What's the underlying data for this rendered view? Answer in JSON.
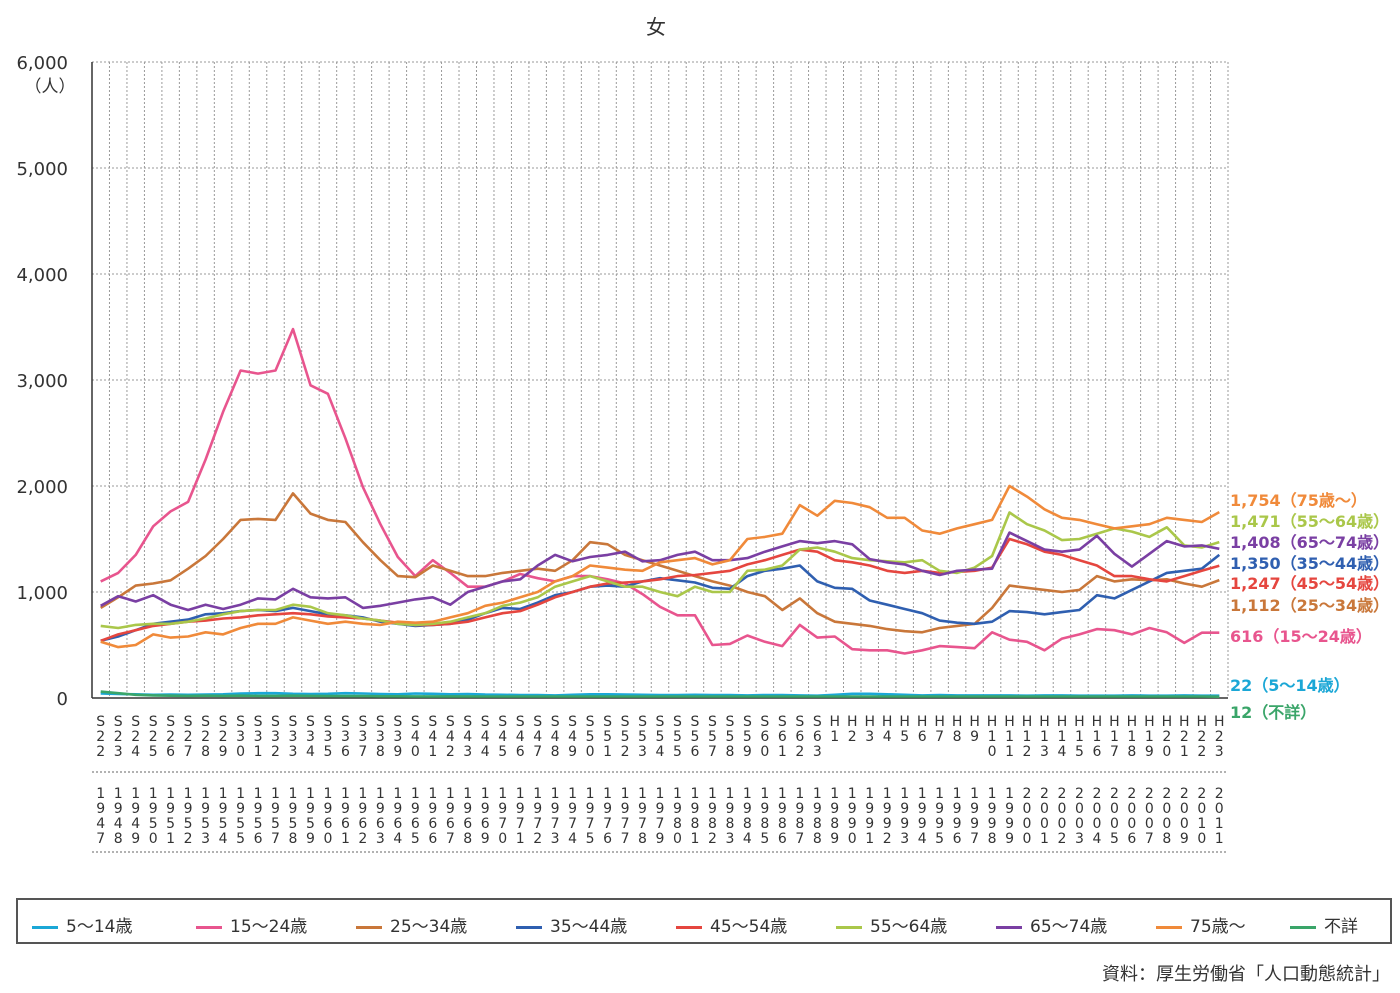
{
  "chart_data": {
    "type": "line",
    "title": "女",
    "ylabel": "（人）",
    "ylim": [
      0,
      6000
    ],
    "yticks": [
      "0",
      "1,000",
      "2,000",
      "3,000",
      "4,000",
      "5,000",
      "6,000"
    ],
    "grid": true,
    "era_labels": [
      "S22",
      "S23",
      "S24",
      "S25",
      "S26",
      "S27",
      "S28",
      "S29",
      "S30",
      "S31",
      "S32",
      "S33",
      "S34",
      "S35",
      "S36",
      "S37",
      "S38",
      "S39",
      "S40",
      "S41",
      "S42",
      "S43",
      "S44",
      "S45",
      "S46",
      "S47",
      "S48",
      "S49",
      "S50",
      "S51",
      "S52",
      "S53",
      "S54",
      "S55",
      "S56",
      "S57",
      "S58",
      "S59",
      "S60",
      "S61",
      "S62",
      "S63",
      "H1",
      "H2",
      "H3",
      "H4",
      "H5",
      "H6",
      "H7",
      "H8",
      "H9",
      "H10",
      "H11",
      "H12",
      "H13",
      "H14",
      "H15",
      "H16",
      "H17",
      "H18",
      "H19",
      "H20",
      "H21",
      "H22",
      "H23"
    ],
    "year_labels": [
      "1947",
      "1948",
      "1949",
      "1950",
      "1951",
      "1952",
      "1953",
      "1954",
      "1955",
      "1956",
      "1957",
      "1958",
      "1959",
      "1960",
      "1961",
      "1962",
      "1963",
      "1964",
      "1965",
      "1966",
      "1967",
      "1968",
      "1969",
      "1970",
      "1971",
      "1972",
      "1973",
      "1974",
      "1975",
      "1976",
      "1977",
      "1978",
      "1979",
      "1980",
      "1981",
      "1982",
      "1983",
      "1984",
      "1985",
      "1986",
      "1987",
      "1988",
      "1989",
      "1990",
      "1991",
      "1992",
      "1993",
      "1994",
      "1995",
      "1996",
      "1997",
      "1998",
      "1999",
      "2000",
      "2001",
      "2002",
      "2003",
      "2004",
      "2005",
      "2006",
      "2007",
      "2008",
      "2009",
      "2010",
      "2011"
    ],
    "series": [
      {
        "name": "5～14歳",
        "color": "#1ba7d6",
        "end_label": "22（5～14歳）",
        "values": [
          42,
          38,
          35,
          30,
          32,
          30,
          32,
          35,
          42,
          45,
          45,
          40,
          38,
          40,
          45,
          42,
          38,
          35,
          42,
          40,
          35,
          38,
          32,
          30,
          28,
          28,
          25,
          30,
          35,
          35,
          32,
          30,
          28,
          28,
          30,
          28,
          28,
          25,
          28,
          28,
          25,
          22,
          30,
          40,
          40,
          35,
          30,
          25,
          28,
          25,
          25,
          25,
          25,
          22,
          25,
          25,
          22,
          22,
          22,
          25,
          22,
          22,
          25,
          22,
          22
        ]
      },
      {
        "name": "15～24歳",
        "color": "#e8558e",
        "end_label": "616（15～24歳）",
        "values": [
          1100,
          1180,
          1350,
          1620,
          1760,
          1850,
          2250,
          2700,
          3090,
          3060,
          3090,
          3480,
          2950,
          2870,
          2450,
          1990,
          1640,
          1330,
          1150,
          1300,
          1180,
          1050,
          1050,
          1100,
          1170,
          1130,
          1100,
          1150,
          1150,
          1120,
          1080,
          980,
          860,
          780,
          780,
          500,
          510,
          590,
          530,
          490,
          690,
          570,
          580,
          460,
          450,
          450,
          420,
          450,
          490,
          480,
          470,
          620,
          550,
          530,
          450,
          560,
          600,
          650,
          640,
          600,
          660,
          620,
          520,
          616,
          616
        ]
      },
      {
        "name": "25～34歳",
        "color": "#c9773a",
        "end_label": "1,112（25～34歳）",
        "values": [
          850,
          950,
          1060,
          1080,
          1110,
          1220,
          1340,
          1500,
          1680,
          1690,
          1680,
          1930,
          1740,
          1680,
          1660,
          1470,
          1300,
          1150,
          1140,
          1250,
          1200,
          1150,
          1150,
          1180,
          1200,
          1220,
          1200,
          1300,
          1470,
          1450,
          1350,
          1300,
          1250,
          1200,
          1150,
          1100,
          1060,
          1000,
          960,
          830,
          940,
          800,
          720,
          700,
          680,
          650,
          630,
          620,
          660,
          680,
          700,
          850,
          1060,
          1040,
          1020,
          1000,
          1020,
          1150,
          1100,
          1120,
          1110,
          1120,
          1080,
          1050,
          1112
        ]
      },
      {
        "name": "35～44歳",
        "color": "#2f5fb0",
        "end_label": "1,350（35～44歳）",
        "values": [
          540,
          580,
          640,
          700,
          720,
          740,
          790,
          800,
          820,
          830,
          820,
          850,
          820,
          790,
          780,
          760,
          720,
          700,
          680,
          690,
          700,
          740,
          800,
          850,
          840,
          900,
          970,
          1000,
          1050,
          1060,
          1050,
          1100,
          1130,
          1110,
          1090,
          1040,
          1030,
          1150,
          1200,
          1220,
          1250,
          1100,
          1040,
          1030,
          920,
          880,
          840,
          800,
          730,
          710,
          700,
          720,
          820,
          810,
          790,
          810,
          830,
          970,
          940,
          1020,
          1100,
          1180,
          1200,
          1220,
          1350
        ]
      },
      {
        "name": "45～54歳",
        "color": "#e5463f",
        "end_label": "1,247（45～54歳）",
        "values": [
          540,
          600,
          640,
          680,
          700,
          720,
          730,
          750,
          760,
          780,
          790,
          800,
          790,
          770,
          760,
          750,
          730,
          710,
          690,
          690,
          700,
          720,
          760,
          800,
          820,
          880,
          950,
          1000,
          1050,
          1080,
          1090,
          1100,
          1120,
          1150,
          1160,
          1180,
          1200,
          1260,
          1300,
          1350,
          1400,
          1380,
          1300,
          1280,
          1250,
          1200,
          1180,
          1200,
          1180,
          1190,
          1200,
          1230,
          1500,
          1450,
          1380,
          1350,
          1300,
          1250,
          1150,
          1150,
          1120,
          1100,
          1150,
          1200,
          1247
        ]
      },
      {
        "name": "55～64歳",
        "color": "#aac74a",
        "end_label": "1,471（55～64歳）",
        "values": [
          680,
          660,
          690,
          700,
          700,
          720,
          750,
          790,
          820,
          830,
          830,
          880,
          860,
          800,
          780,
          750,
          730,
          700,
          690,
          700,
          720,
          760,
          800,
          870,
          900,
          950,
          1050,
          1100,
          1150,
          1100,
          1050,
          1050,
          1000,
          960,
          1050,
          1000,
          1000,
          1200,
          1210,
          1250,
          1400,
          1420,
          1380,
          1320,
          1300,
          1290,
          1280,
          1300,
          1200,
          1180,
          1230,
          1340,
          1750,
          1640,
          1580,
          1490,
          1500,
          1550,
          1600,
          1570,
          1520,
          1610,
          1440,
          1420,
          1471
        ]
      },
      {
        "name": "65～74歳",
        "color": "#7a3fa3",
        "end_label": "1,408（65～74歳）",
        "values": [
          870,
          960,
          910,
          970,
          880,
          830,
          880,
          840,
          880,
          940,
          930,
          1030,
          950,
          940,
          950,
          850,
          870,
          900,
          930,
          950,
          880,
          1000,
          1050,
          1100,
          1120,
          1250,
          1350,
          1290,
          1330,
          1350,
          1380,
          1290,
          1300,
          1350,
          1380,
          1300,
          1300,
          1320,
          1380,
          1430,
          1480,
          1460,
          1480,
          1450,
          1310,
          1280,
          1260,
          1200,
          1160,
          1200,
          1210,
          1220,
          1560,
          1480,
          1400,
          1380,
          1400,
          1530,
          1360,
          1240,
          1360,
          1480,
          1430,
          1440,
          1408
        ]
      },
      {
        "name": "75歳～",
        "color": "#f08a3a",
        "end_label": "1,754（75歳～）",
        "values": [
          530,
          480,
          500,
          600,
          570,
          580,
          620,
          600,
          660,
          700,
          700,
          760,
          730,
          700,
          720,
          700,
          690,
          720,
          710,
          720,
          760,
          800,
          870,
          900,
          950,
          1000,
          1100,
          1150,
          1250,
          1230,
          1210,
          1200,
          1280,
          1300,
          1320,
          1260,
          1300,
          1500,
          1520,
          1550,
          1820,
          1720,
          1860,
          1840,
          1800,
          1700,
          1700,
          1580,
          1550,
          1600,
          1640,
          1680,
          2000,
          1900,
          1780,
          1700,
          1680,
          1640,
          1600,
          1620,
          1640,
          1700,
          1680,
          1660,
          1754
        ]
      },
      {
        "name": "不詳",
        "color": "#3aa569",
        "end_label": "12（不詳）",
        "values": [
          60,
          45,
          30,
          25,
          22,
          20,
          22,
          20,
          22,
          20,
          20,
          22,
          20,
          18,
          18,
          18,
          16,
          16,
          15,
          15,
          15,
          15,
          14,
          14,
          14,
          14,
          14,
          14,
          14,
          14,
          14,
          14,
          14,
          14,
          14,
          14,
          14,
          14,
          14,
          14,
          14,
          14,
          14,
          14,
          14,
          14,
          14,
          14,
          14,
          14,
          14,
          14,
          14,
          14,
          14,
          14,
          14,
          14,
          14,
          14,
          14,
          14,
          14,
          14,
          12
        ]
      }
    ]
  },
  "source": "資料：厚生労働省「人口動態統計」"
}
